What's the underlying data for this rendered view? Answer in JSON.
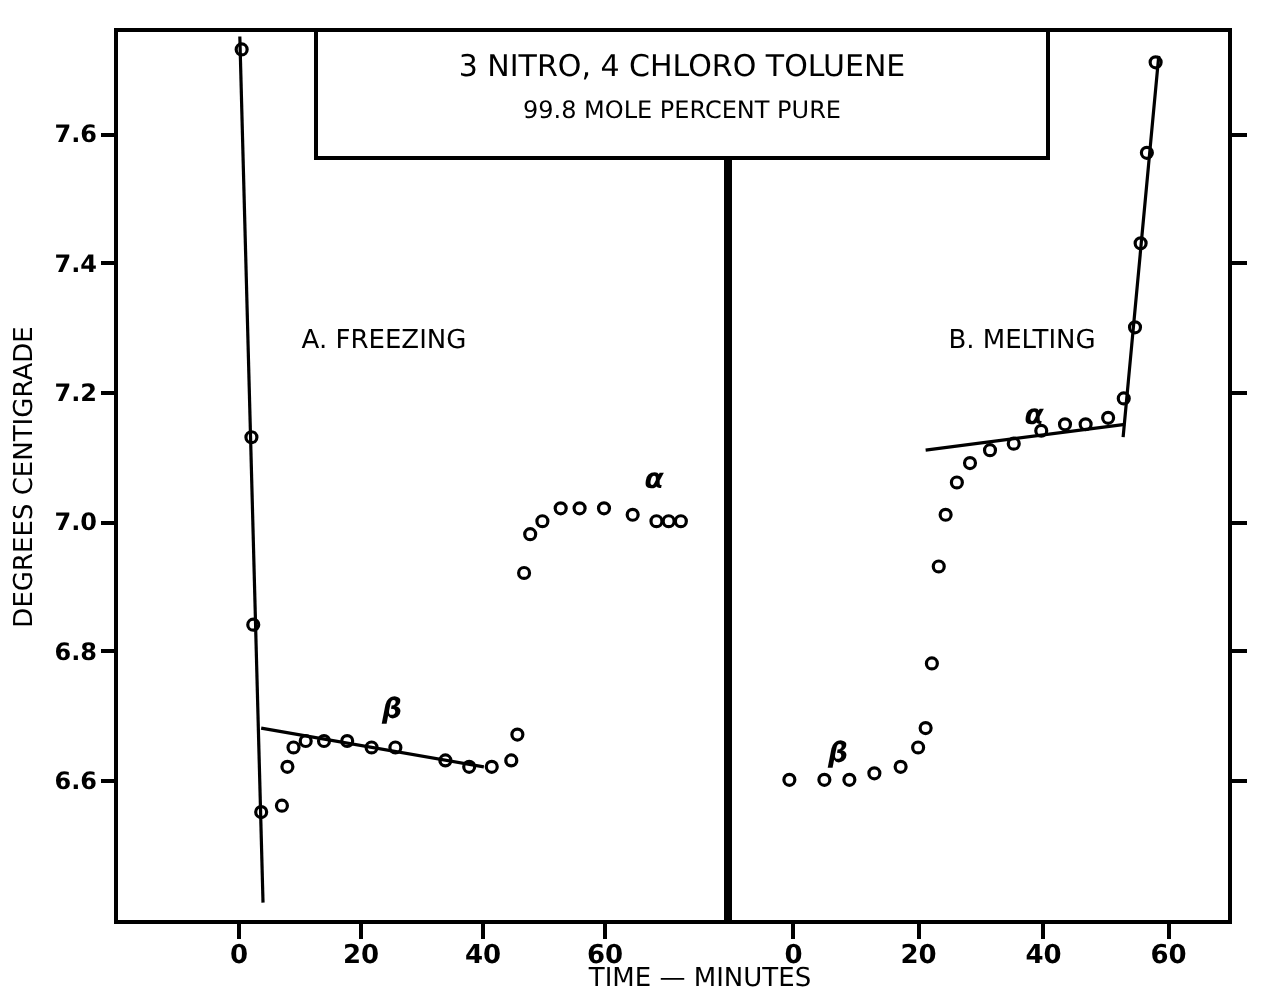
{
  "chart_data": [
    {
      "type": "scatter",
      "title": "3 NITRO, 4 CHLORO TOLUENE",
      "subtitle": "99.8 MOLE PERCENT PURE",
      "xlabel": "TIME — MINUTES",
      "ylabel": "DEGREES CENTIGRADE",
      "xlim": [
        -20,
        80
      ],
      "xticks": [
        0,
        20,
        40,
        60
      ],
      "ylim": [
        6.38,
        7.76
      ],
      "yticks": [
        6.6,
        6.8,
        {
          "value": 7,
          "label": "7.0"
        },
        7.2,
        7.4,
        7.6
      ],
      "grid": false,
      "annotations": [
        "A. FREEZING",
        "β",
        "α"
      ],
      "series": [
        {
          "color": "#000000",
          "marker": "circle",
          "x": [
            0.6,
            2.2,
            2.5,
            3.8,
            7.2,
            8.1,
            9.1,
            11.1,
            14.1,
            17.9,
            21.9,
            25.8,
            34,
            37.9,
            41.6,
            44.8,
            45.8,
            46.9,
            47.9,
            49.9,
            52.9,
            56,
            60,
            64.7,
            68.6,
            70.6,
            72.6
          ],
          "values": [
            7.73,
            7.13,
            6.84,
            6.55,
            6.56,
            6.62,
            6.65,
            6.66,
            6.66,
            6.66,
            6.65,
            6.65,
            6.63,
            6.62,
            6.62,
            6.63,
            6.67,
            6.92,
            6.98,
            7.0,
            7.02,
            7.02,
            7.02,
            7.01,
            7.0,
            7.0,
            7.0
          ]
        },
        {
          "type": "line",
          "color": "#000000",
          "x": [
            0.3,
            4.1
          ],
          "values": [
            7.75,
            6.41
          ]
        },
        {
          "type": "line",
          "color": "#000000",
          "x": [
            3.8,
            40.3
          ],
          "values": [
            6.68,
            6.62
          ]
        }
      ]
    },
    {
      "type": "scatter",
      "xlim": [
        -10,
        70
      ],
      "xticks": [
        0,
        20,
        40,
        60
      ],
      "ylim": [
        6.38,
        7.76
      ],
      "yticks": [
        6.6,
        6.8,
        7,
        7.2,
        7.4,
        7.6
      ],
      "tick_labels": "x",
      "grid": false,
      "annotations": [
        "B. MELTING",
        "β",
        "α"
      ],
      "series": [
        {
          "color": "#000000",
          "marker": "circle",
          "x": [
            -0.5,
            5.1,
            9.1,
            13.1,
            17.3,
            20.1,
            21.3,
            22.3,
            23.4,
            24.5,
            26.3,
            28.4,
            31.6,
            35.4,
            39.8,
            43.6,
            46.9,
            50.5,
            53,
            54.8,
            55.7,
            56.7,
            58.1
          ],
          "values": [
            6.6,
            6.6,
            6.6,
            6.61,
            6.62,
            6.65,
            6.68,
            6.78,
            6.93,
            7.01,
            7.06,
            7.09,
            7.11,
            7.12,
            7.14,
            7.15,
            7.15,
            7.16,
            7.19,
            7.3,
            7.43,
            7.57,
            7.71
          ]
        },
        {
          "type": "line",
          "color": "#000000",
          "x": [
            21.3,
            53.2
          ],
          "values": [
            7.11,
            7.15
          ]
        },
        {
          "type": "line",
          "color": "#000000",
          "x": [
            52.9,
            58.6
          ],
          "values": [
            7.13,
            7.72
          ]
        }
      ]
    }
  ]
}
